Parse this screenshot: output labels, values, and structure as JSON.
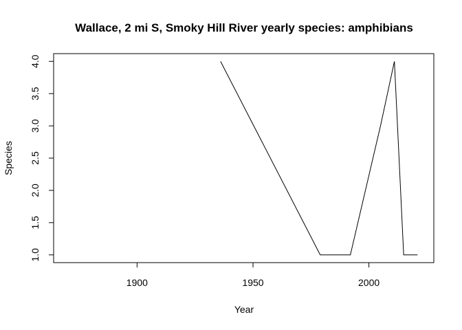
{
  "chart_data": {
    "type": "line",
    "title": "Wallace, 2 mi S, Smoky Hill River yearly species: amphibians",
    "xlabel": "Year",
    "ylabel": "Species",
    "xlim": [
      1864,
      2028
    ],
    "ylim": [
      0.88,
      4.12
    ],
    "x_ticks": [
      1900,
      1950,
      2000
    ],
    "y_ticks": [
      "1.0",
      "1.5",
      "2.0",
      "2.5",
      "3.0",
      "3.5",
      "4.0"
    ],
    "grid": false,
    "series": [
      {
        "line_color": "#000000",
        "points": [
          {
            "x": 1936,
            "y": 4
          },
          {
            "x": 1979,
            "y": 1
          },
          {
            "x": 1992,
            "y": 1
          },
          {
            "x": 2005,
            "y": 3
          },
          {
            "x": 2011,
            "y": 4
          },
          {
            "x": 2015,
            "y": 1
          },
          {
            "x": 2021,
            "y": 1
          }
        ]
      }
    ]
  }
}
